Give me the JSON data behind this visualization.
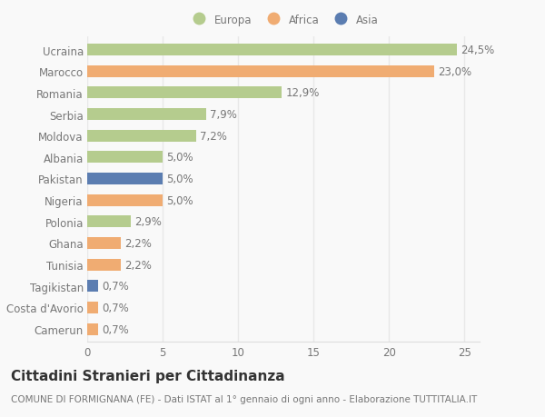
{
  "categories": [
    "Ucraina",
    "Marocco",
    "Romania",
    "Serbia",
    "Moldova",
    "Albania",
    "Pakistan",
    "Nigeria",
    "Polonia",
    "Ghana",
    "Tunisia",
    "Tagikistan",
    "Costa d'Avorio",
    "Camerun"
  ],
  "values": [
    24.5,
    23.0,
    12.9,
    7.9,
    7.2,
    5.0,
    5.0,
    5.0,
    2.9,
    2.2,
    2.2,
    0.7,
    0.7,
    0.7
  ],
  "labels": [
    "24,5%",
    "23,0%",
    "12,9%",
    "7,9%",
    "7,2%",
    "5,0%",
    "5,0%",
    "5,0%",
    "2,9%",
    "2,2%",
    "2,2%",
    "0,7%",
    "0,7%",
    "0,7%"
  ],
  "continents": [
    "Europa",
    "Africa",
    "Europa",
    "Europa",
    "Europa",
    "Europa",
    "Asia",
    "Africa",
    "Europa",
    "Africa",
    "Africa",
    "Asia",
    "Africa",
    "Africa"
  ],
  "colors": {
    "Europa": "#b5cc8e",
    "Africa": "#f0ac72",
    "Asia": "#5b7db1"
  },
  "legend_labels": [
    "Europa",
    "Africa",
    "Asia"
  ],
  "legend_colors": [
    "#b5cc8e",
    "#f0ac72",
    "#5b7db1"
  ],
  "xlim": [
    0,
    26
  ],
  "xticks": [
    0,
    5,
    10,
    15,
    20,
    25
  ],
  "title": "Cittadini Stranieri per Cittadinanza",
  "subtitle": "COMUNE DI FORMIGNANA (FE) - Dati ISTAT al 1° gennaio di ogni anno - Elaborazione TUTTITALIA.IT",
  "background_color": "#f9f9f9",
  "grid_color": "#e8e8e8",
  "bar_height": 0.55,
  "label_fontsize": 8.5,
  "tick_fontsize": 8.5,
  "title_fontsize": 11,
  "subtitle_fontsize": 7.5
}
